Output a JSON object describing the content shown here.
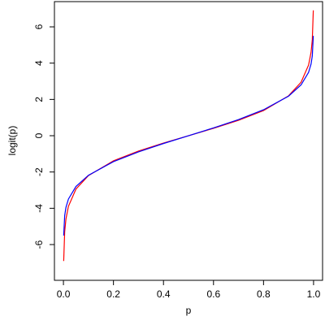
{
  "chart_data": {
    "type": "line",
    "x_label": "p",
    "y_label": "logit(p)",
    "x": [
      0.001,
      0.005,
      0.01,
      0.02,
      0.05,
      0.1,
      0.2,
      0.3,
      0.4,
      0.5,
      0.6,
      0.7,
      0.8,
      0.9,
      0.95,
      0.98,
      0.99,
      0.995,
      0.999
    ],
    "series": [
      {
        "color": "#ff0000",
        "values": [
          -6.907,
          -5.293,
          -4.595,
          -3.892,
          -2.944,
          -2.197,
          -1.386,
          -0.847,
          -0.405,
          0,
          0.405,
          0.847,
          1.386,
          2.197,
          2.944,
          3.892,
          4.595,
          5.293,
          6.907
        ]
      },
      {
        "color": "#0000ff",
        "values": [
          -5.5,
          -4.4,
          -3.95,
          -3.49,
          -2.8,
          -2.18,
          -1.43,
          -0.89,
          -0.43,
          0,
          0.43,
          0.89,
          1.43,
          2.18,
          2.8,
          3.49,
          3.95,
          4.4,
          5.5
        ]
      }
    ],
    "xlim": [
      -0.036,
      1.036
    ],
    "ylim": [
      -7.97,
      7.39
    ],
    "xticks": [
      {
        "value": 0,
        "label": "0.0"
      },
      {
        "value": 0.2,
        "label": "0.2"
      },
      {
        "value": 0.4,
        "label": "0.4"
      },
      {
        "value": 0.6,
        "label": "0.6"
      },
      {
        "value": 0.8,
        "label": "0.8"
      },
      {
        "value": 1,
        "label": "1.0"
      }
    ],
    "yticks": [
      -6,
      -4,
      -2,
      0,
      2,
      4,
      6
    ]
  }
}
